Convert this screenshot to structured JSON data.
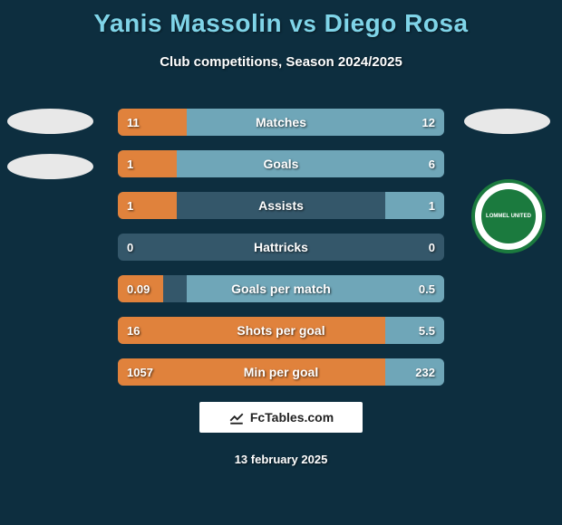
{
  "title": {
    "player1": "Yanis Massolin",
    "vs": "vs",
    "player2": "Diego Rosa"
  },
  "subtitle": "Club competitions, Season 2024/2025",
  "colors": {
    "background": "#0d2e3f",
    "title_text": "#7fd4e8",
    "bar_track": "#34576a",
    "bar_left": "#e0823c",
    "bar_right": "#6fa6b8",
    "text": "#ffffff",
    "badge_ring": "#1b7a3e"
  },
  "stats": [
    {
      "label": "Matches",
      "left_val": "11",
      "right_val": "12",
      "left_pct": 21,
      "right_pct": 79
    },
    {
      "label": "Goals",
      "left_val": "1",
      "right_val": "6",
      "left_pct": 18,
      "right_pct": 82
    },
    {
      "label": "Assists",
      "left_val": "1",
      "right_val": "1",
      "left_pct": 18,
      "right_pct": 18
    },
    {
      "label": "Hattricks",
      "left_val": "0",
      "right_val": "0",
      "left_pct": 0,
      "right_pct": 0
    },
    {
      "label": "Goals per match",
      "left_val": "0.09",
      "right_val": "0.5",
      "left_pct": 14,
      "right_pct": 79
    },
    {
      "label": "Shots per goal",
      "left_val": "16",
      "right_val": "5.5",
      "left_pct": 82,
      "right_pct": 18
    },
    {
      "label": "Min per goal",
      "left_val": "1057",
      "right_val": "232",
      "left_pct": 82,
      "right_pct": 18
    }
  ],
  "footer_logo_text": "FcTables.com",
  "date": "13 february 2025",
  "club_badge_text": "LOMMEL UNITED"
}
